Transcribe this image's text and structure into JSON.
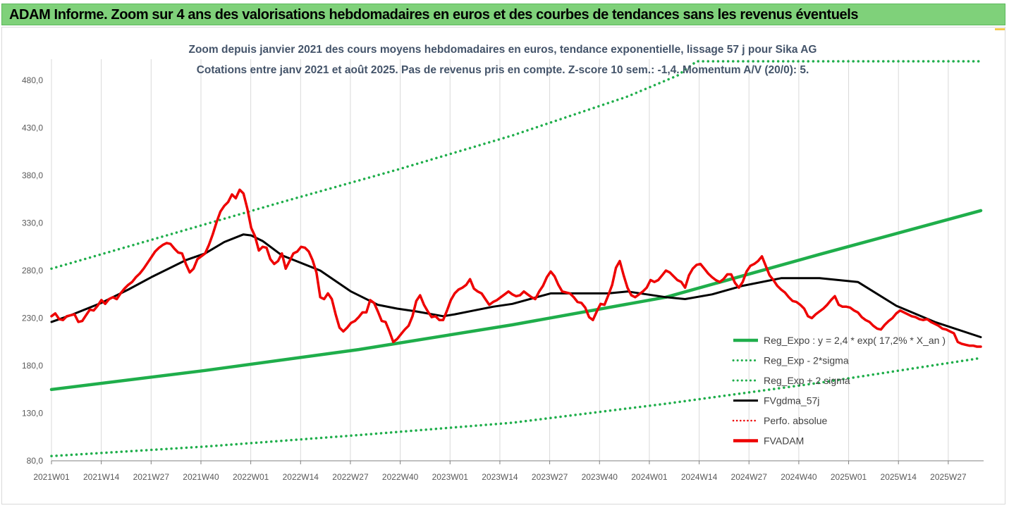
{
  "header": {
    "title": "ADAM Informe. Zoom sur 4 ans des valorisations hebdomadaires en euros et des courbes de tendances sans les revenus éventuels"
  },
  "colors": {
    "header_bg": "#7fd17a",
    "trend": "#1fae4b",
    "band": "#1fae4b",
    "average": "#000000",
    "price": "#ee0000",
    "perf": "#ee0000",
    "grid": "#d9d9d9",
    "subtitle": "#44546a"
  },
  "chart_data": {
    "type": "line",
    "title_lines": [
      "Zoom depuis janvier 2021 des cours moyens hebdomadaires en euros, tendance exponentielle, lissage 57 j pour Sika AG",
      "Cotations entre janv 2021 et août 2025.  Pas de revenus pris en compte.  Z-score 10 sem.: -1,4.  Momentum A/V (20/0): 5."
    ],
    "x_tick_labels": [
      "2021W01",
      "2021W14",
      "2021W27",
      "2021W40",
      "2022W01",
      "2022W14",
      "2022W27",
      "2022W40",
      "2023W01",
      "2023W14",
      "2023W27",
      "2023W40",
      "2024W01",
      "2024W14",
      "2024W27",
      "2024W40",
      "2025W01",
      "2025W14",
      "2025W27"
    ],
    "x_range": [
      0,
      242
    ],
    "ylim": [
      80,
      480
    ],
    "y_ticks": [
      80,
      130,
      180,
      230,
      280,
      330,
      380,
      430,
      480
    ],
    "y_tick_labels": [
      "80,0",
      "130,0",
      "180,0",
      "230,0",
      "280,0",
      "330,0",
      "380,0",
      "430,0",
      "480,0"
    ],
    "grid": {
      "vertical": true,
      "horizontal": false
    },
    "legend_position": "right",
    "legend": [
      {
        "name": "Reg_Expo : y = 2,4 * exp( 17,2% *  X_an )",
        "key": "reg_expo",
        "style": "solid-thick"
      },
      {
        "name": "Reg_Exp - 2*sigma",
        "key": "reg_minus",
        "style": "dotted"
      },
      {
        "name": "Reg_Exp + 2 sigma",
        "key": "reg_plus",
        "style": "dotted"
      },
      {
        "name": "FVgdma_57j",
        "key": "fvgdma",
        "style": "solid"
      },
      {
        "name": "Perfo. absolue",
        "key": "perfo",
        "style": "dotted-red"
      },
      {
        "name": "FVADAM",
        "key": "fvadam",
        "style": "solid-thick-red"
      }
    ],
    "series": {
      "reg_expo": {
        "x": [
          0,
          40,
          80,
          120,
          160,
          200,
          242
        ],
        "y": [
          155,
          175,
          197,
          223,
          252,
          297,
          343
        ]
      },
      "reg_minus": {
        "x": [
          0,
          40,
          80,
          120,
          160,
          200,
          242
        ],
        "y": [
          85,
          95,
          107,
          120,
          140,
          162,
          188
        ]
      },
      "reg_plus": {
        "x": [
          0,
          30,
          60,
          90,
          120,
          150,
          163,
          168,
          242
        ],
        "y": [
          282,
          317,
          352,
          386,
          422,
          463,
          485,
          500,
          500
        ]
      },
      "fvgdma": {
        "x": [
          0,
          5,
          13,
          20,
          26,
          35,
          40,
          45,
          50,
          52,
          55,
          60,
          70,
          78,
          85,
          90,
          95,
          102,
          105,
          110,
          115,
          120,
          130,
          140,
          145,
          150,
          160,
          165,
          172,
          180,
          190,
          200,
          210,
          220,
          230,
          242
        ],
        "y": [
          226,
          233,
          246,
          260,
          273,
          291,
          298,
          310,
          318,
          317,
          311,
          296,
          280,
          258,
          244,
          240,
          237,
          232,
          234,
          238,
          242,
          245,
          256,
          256,
          256,
          258,
          252,
          250,
          255,
          264,
          272,
          272,
          268,
          243,
          226,
          210
        ]
      },
      "fvadam": {
        "x": [
          0,
          1,
          2,
          3,
          4,
          5,
          6,
          7,
          8,
          9,
          10,
          11,
          12,
          13,
          14,
          15,
          16,
          17,
          18,
          19,
          20,
          21,
          22,
          23,
          24,
          25,
          26,
          27,
          28,
          29,
          30,
          31,
          32,
          33,
          34,
          35,
          36,
          37,
          38,
          39,
          40,
          41,
          42,
          43,
          44,
          45,
          46,
          47,
          48,
          49,
          50,
          51,
          52,
          53,
          54,
          55,
          56,
          57,
          58,
          59,
          60,
          61,
          62,
          63,
          64,
          65,
          66,
          67,
          68,
          69,
          70,
          71,
          72,
          73,
          74,
          75,
          76,
          77,
          78,
          79,
          80,
          81,
          82,
          83,
          84,
          85,
          86,
          87,
          88,
          89,
          90,
          91,
          92,
          93,
          94,
          95,
          96,
          97,
          98,
          99,
          100,
          101,
          102,
          103,
          104,
          105,
          106,
          107,
          108,
          109,
          110,
          111,
          112,
          113,
          114,
          115,
          116,
          117,
          118,
          119,
          120,
          121,
          122,
          123,
          124,
          125,
          126,
          127,
          128,
          129,
          130,
          131,
          132,
          133,
          134,
          135,
          136,
          137,
          138,
          139,
          140,
          141,
          142,
          143,
          144,
          145,
          146,
          147,
          148,
          149,
          150,
          151,
          152,
          153,
          154,
          155,
          156,
          157,
          158,
          159,
          160,
          161,
          162,
          163,
          164,
          165,
          166,
          167,
          168,
          169,
          170,
          171,
          172,
          173,
          174,
          175,
          176,
          177,
          178,
          179,
          180,
          181,
          182,
          183,
          184,
          185,
          186,
          187,
          188,
          189,
          190,
          191,
          192,
          193,
          194,
          195,
          196,
          197,
          198,
          199,
          200,
          201,
          202,
          203,
          204,
          205,
          206,
          207,
          208,
          209,
          210,
          211,
          212,
          213,
          214,
          215,
          216,
          217,
          218,
          219,
          220,
          221,
          222,
          223,
          224,
          225,
          226,
          227,
          228,
          229,
          230,
          231,
          232,
          233,
          234,
          235,
          236,
          237,
          238,
          239,
          240,
          241,
          242
        ],
        "y": [
          232,
          235,
          229,
          228,
          232,
          233,
          234,
          226,
          227,
          233,
          239,
          238,
          243,
          249,
          245,
          250,
          252,
          250,
          256,
          261,
          265,
          268,
          273,
          277,
          282,
          288,
          294,
          300,
          304,
          307,
          309,
          308,
          303,
          299,
          298,
          287,
          278,
          282,
          292,
          295,
          298,
          307,
          318,
          331,
          342,
          348,
          352,
          360,
          356,
          365,
          361,
          345,
          325,
          316,
          301,
          305,
          304,
          292,
          287,
          290,
          298,
          282,
          290,
          298,
          300,
          305,
          304,
          300,
          291,
          278,
          252,
          250,
          256,
          250,
          234,
          220,
          216,
          220,
          225,
          227,
          231,
          236,
          236,
          249,
          246,
          237,
          227,
          226,
          216,
          205,
          208,
          213,
          218,
          222,
          232,
          248,
          254,
          244,
          237,
          231,
          232,
          228,
          228,
          238,
          249,
          256,
          260,
          262,
          265,
          271,
          261,
          258,
          256,
          250,
          244,
          247,
          249,
          252,
          255,
          258,
          255,
          253,
          254,
          258,
          255,
          252,
          250,
          258,
          264,
          273,
          279,
          274,
          265,
          258,
          257,
          256,
          252,
          247,
          246,
          241,
          231,
          228,
          237,
          245,
          244,
          254,
          265,
          283,
          290,
          275,
          262,
          254,
          252,
          255,
          258,
          262,
          270,
          268,
          270,
          275,
          280,
          278,
          274,
          270,
          268,
          262,
          275,
          282,
          286,
          287,
          282,
          277,
          273,
          270,
          268,
          271,
          276,
          276,
          267,
          262,
          268,
          279,
          285,
          287,
          290,
          295,
          285,
          275,
          270,
          264,
          260,
          257,
          252,
          248,
          247,
          244,
          240,
          232,
          230,
          234,
          237,
          240,
          244,
          249,
          253,
          244,
          242,
          242,
          241,
          238,
          236,
          231,
          228,
          226,
          222,
          219,
          218,
          223,
          227,
          230,
          235,
          238,
          236,
          234,
          232,
          231,
          229,
          228,
          229,
          226,
          224,
          222,
          219,
          218,
          216,
          214,
          205,
          203,
          202,
          201,
          201,
          200,
          200
        ]
      }
    }
  }
}
